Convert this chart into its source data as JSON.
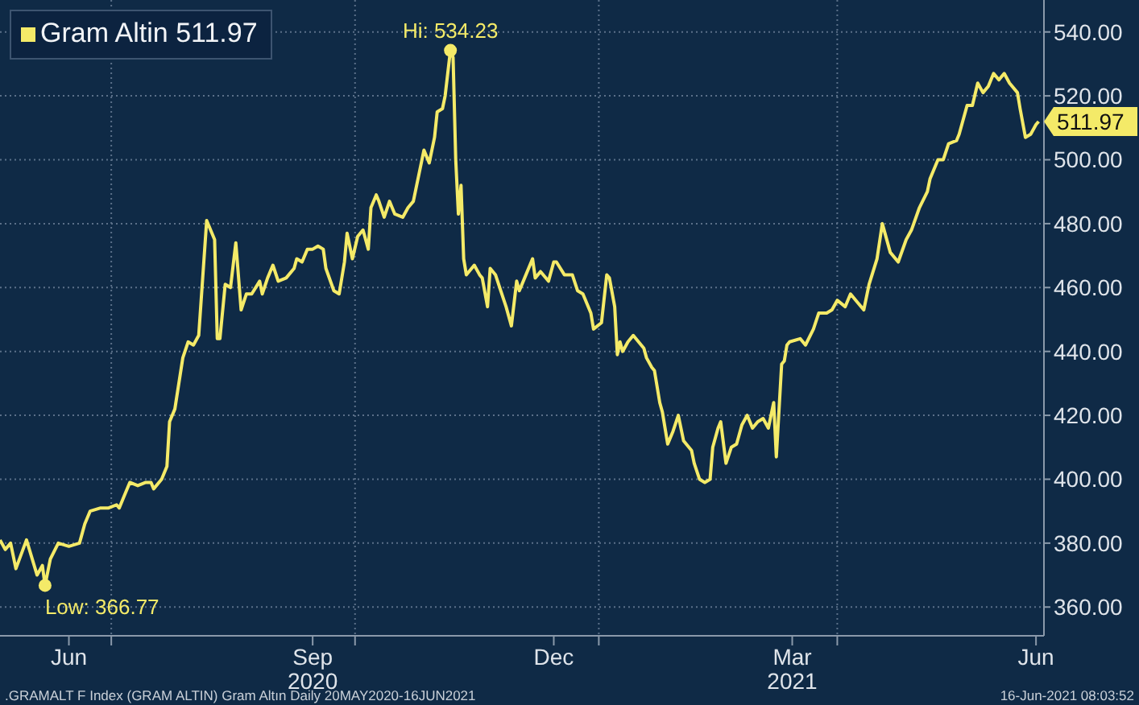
{
  "chart_data": {
    "type": "line",
    "x": [
      "2020-05-20",
      "2020-05-22",
      "2020-05-24",
      "2020-05-26",
      "2020-05-30",
      "2020-06-03",
      "2020-06-05",
      "2020-06-06",
      "2020-06-08",
      "2020-06-11",
      "2020-06-15",
      "2020-06-19",
      "2020-06-21",
      "2020-06-23",
      "2020-06-27",
      "2020-06-30",
      "2020-07-03",
      "2020-07-04",
      "2020-07-06",
      "2020-07-08",
      "2020-07-11",
      "2020-07-14",
      "2020-07-16",
      "2020-07-17",
      "2020-07-20",
      "2020-07-22",
      "2020-07-23",
      "2020-07-25",
      "2020-07-28",
      "2020-07-30",
      "2020-08-01",
      "2020-08-03",
      "2020-08-06",
      "2020-08-09",
      "2020-08-10",
      "2020-08-11",
      "2020-08-13",
      "2020-08-15",
      "2020-08-17",
      "2020-08-19",
      "2020-08-21",
      "2020-08-23",
      "2020-08-26",
      "2020-08-27",
      "2020-08-29",
      "2020-08-31",
      "2020-09-02",
      "2020-09-05",
      "2020-09-08",
      "2020-09-09",
      "2020-09-11",
      "2020-09-13",
      "2020-09-15",
      "2020-09-17",
      "2020-09-19",
      "2020-09-20",
      "2020-09-23",
      "2020-09-25",
      "2020-09-27",
      "2020-09-28",
      "2020-09-30",
      "2020-10-02",
      "2020-10-04",
      "2020-10-06",
      "2020-10-07",
      "2020-10-09",
      "2020-10-10",
      "2020-10-12",
      "2020-10-14",
      "2020-10-16",
      "2020-10-19",
      "2020-10-21",
      "2020-10-23",
      "2020-10-25",
      "2020-10-27",
      "2020-10-29",
      "2020-10-31",
      "2020-11-01",
      "2020-11-03",
      "2020-11-04",
      "2020-11-06",
      "2020-11-07",
      "2020-11-08",
      "2020-11-09",
      "2020-11-10",
      "2020-11-11",
      "2020-11-12",
      "2020-11-15",
      "2020-11-17",
      "2020-11-18",
      "2020-11-20",
      "2020-11-21",
      "2020-11-23",
      "2020-11-25",
      "2020-11-27",
      "2020-11-29",
      "2020-12-01",
      "2020-12-02",
      "2020-12-04",
      "2020-12-07",
      "2020-12-08",
      "2020-12-10",
      "2020-12-13",
      "2020-12-15",
      "2020-12-16",
      "2020-12-19",
      "2020-12-22",
      "2020-12-24",
      "2020-12-26",
      "2020-12-29",
      "2020-12-30",
      "2021-01-02",
      "2021-01-04",
      "2021-01-05",
      "2021-01-07",
      "2021-01-08",
      "2021-01-09",
      "2021-01-10",
      "2021-01-12",
      "2021-01-14",
      "2021-01-16",
      "2021-01-18",
      "2021-01-19",
      "2021-01-21",
      "2021-01-22",
      "2021-01-24",
      "2021-01-25",
      "2021-01-27",
      "2021-01-29",
      "2021-01-31",
      "2021-02-02",
      "2021-02-05",
      "2021-02-06",
      "2021-02-08",
      "2021-02-10",
      "2021-02-12",
      "2021-02-13",
      "2021-02-15",
      "2021-02-16",
      "2021-02-18",
      "2021-02-20",
      "2021-02-22",
      "2021-02-24",
      "2021-02-26",
      "2021-02-28",
      "2021-03-02",
      "2021-03-04",
      "2021-03-06",
      "2021-03-08",
      "2021-03-09",
      "2021-03-11",
      "2021-03-12",
      "2021-03-13",
      "2021-03-14",
      "2021-03-18",
      "2021-03-20",
      "2021-03-23",
      "2021-03-25",
      "2021-03-28",
      "2021-03-30",
      "2021-04-01",
      "2021-04-04",
      "2021-04-06",
      "2021-04-08",
      "2021-04-11",
      "2021-04-13",
      "2021-04-16",
      "2021-04-18",
      "2021-04-21",
      "2021-04-24",
      "2021-04-27",
      "2021-04-29",
      "2021-05-02",
      "2021-05-05",
      "2021-05-06",
      "2021-05-09",
      "2021-05-11",
      "2021-05-13",
      "2021-05-16",
      "2021-05-17",
      "2021-05-20",
      "2021-05-22",
      "2021-05-24",
      "2021-05-26",
      "2021-05-28",
      "2021-05-30",
      "2021-06-01",
      "2021-06-03",
      "2021-06-05",
      "2021-06-08",
      "2021-06-09",
      "2021-06-11",
      "2021-06-13",
      "2021-06-15",
      "2021-06-16"
    ],
    "series": [
      {
        "name": "Gram Altin 511.97",
        "color": "#f4ea68",
        "values": [
          381,
          378,
          380,
          372,
          381,
          370,
          373,
          366.77,
          375,
          380,
          379,
          380,
          386,
          390,
          391,
          391,
          392,
          391,
          395,
          399,
          398,
          399,
          399,
          397,
          400,
          404,
          418,
          422,
          438,
          443,
          442,
          445,
          481,
          475,
          444,
          444,
          461,
          460,
          474,
          453,
          458,
          458,
          462,
          458,
          463,
          467,
          462,
          463,
          466,
          469,
          468,
          472,
          472,
          473,
          472,
          466,
          459,
          458,
          468,
          477,
          469,
          476,
          478,
          472,
          485,
          489,
          487,
          482,
          487,
          483,
          482,
          485,
          487,
          495,
          503,
          499,
          507,
          515,
          516,
          520,
          534.23,
          532,
          500,
          483,
          492,
          469,
          464,
          467,
          464,
          463,
          454,
          466,
          464,
          459,
          454,
          448,
          462,
          459,
          463,
          469,
          463,
          465,
          462,
          468,
          468,
          464,
          464,
          459,
          458,
          452,
          447,
          449,
          464,
          463,
          454,
          439,
          443,
          440,
          443,
          445,
          443,
          441,
          438,
          435,
          434,
          424,
          421,
          411,
          415,
          420,
          412,
          409,
          405,
          400,
          399,
          400,
          410,
          416,
          418,
          405,
          410,
          411,
          417,
          420,
          416,
          418,
          419,
          416,
          424,
          407,
          436,
          437,
          442,
          443,
          444,
          442,
          447,
          452,
          452,
          453,
          456,
          454,
          458,
          456,
          453,
          461,
          469,
          480,
          471,
          468,
          475,
          478,
          485,
          490,
          494,
          500,
          500,
          505,
          506,
          508,
          517,
          517,
          524,
          521,
          523,
          527,
          525,
          527,
          524,
          521,
          516,
          507,
          508,
          511,
          511.97
        ]
      }
    ],
    "xlim": [
      "2020-05-20",
      "2021-06-18"
    ],
    "xticks": [
      {
        "value": "2020-06-15",
        "label": "Jun"
      },
      {
        "value": "2020-07-01",
        "label": null
      },
      {
        "value": "2020-09-15",
        "label": "Sep\n2020"
      },
      {
        "value": "2020-10-01",
        "label": null
      },
      {
        "value": "2020-12-15",
        "label": "Dec"
      },
      {
        "value": "2021-01-01",
        "label": null
      },
      {
        "value": "2021-03-15",
        "label": "Mar\n2021"
      },
      {
        "value": "2021-04-01",
        "label": null
      },
      {
        "value": "2021-06-15",
        "label": "Jun"
      }
    ],
    "ylim": [
      351,
      550
    ],
    "yticks": [
      {
        "value": 360,
        "label": "360.00"
      },
      {
        "value": 380,
        "label": "380.00"
      },
      {
        "value": 400,
        "label": "400.00"
      },
      {
        "value": 420,
        "label": "420.00"
      },
      {
        "value": 440,
        "label": "440.00"
      },
      {
        "value": 460,
        "label": "460.00"
      },
      {
        "value": 480,
        "label": "480.00"
      },
      {
        "value": 500,
        "label": "500.00"
      },
      {
        "value": 520,
        "label": "520.00"
      },
      {
        "value": 540,
        "label": "540.00"
      }
    ],
    "grid": true,
    "legend": "top left",
    "annotations": [
      {
        "text": "Hi: 534.23",
        "x": "2020-11-06",
        "y": 534.23
      },
      {
        "text": "Low: 366.77",
        "x": "2020-06-06",
        "y": 366.77
      },
      {
        "text": "511.97",
        "x": "2021-06-16",
        "y": 511.97
      },
      ".GRAMALT F Index (GRAM ALTIN) Gram Altın  Daily 20MAY2020-16JUN2021",
      "16-Jun-2021 08:03:52"
    ]
  }
}
